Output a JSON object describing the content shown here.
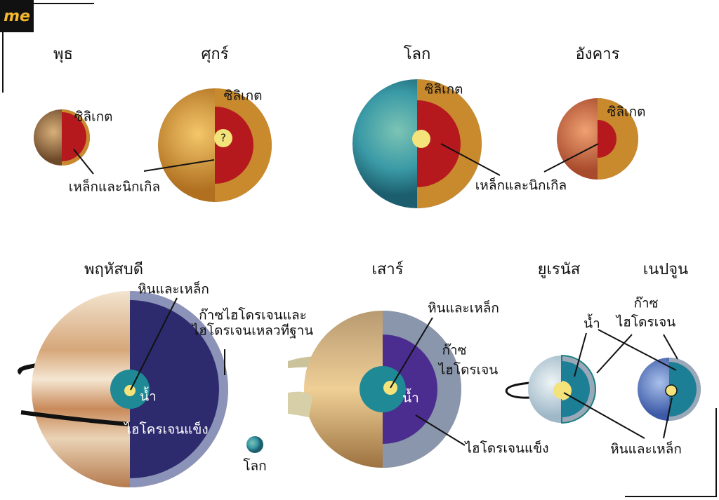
{
  "logo": "me",
  "planets": [
    {
      "name": "พุธ",
      "labels": [
        "ซิลิเกต",
        "เหล็กและนิกเกิล"
      ]
    },
    {
      "name": "ศุกร์",
      "labels": [
        "ซิลิเกต",
        "?"
      ]
    },
    {
      "name": "โลก",
      "labels": [
        "ซิลิเกต",
        "เหล็กและนิกเกิล"
      ]
    },
    {
      "name": "อังคาร",
      "labels": [
        "ซิลิเกต"
      ]
    },
    {
      "name": "พฤหัสบดี",
      "labels": [
        "หินและเหล็ก",
        "ก๊าซไฮโดรเจนและ",
        "ไฮโดรเจนเหลวทีฐาน",
        "น้ำ",
        "ไฮโครเจนแข็ง"
      ]
    },
    {
      "name": "เสาร์",
      "labels": [
        "หินและเหล็ก",
        "ก๊าซ",
        "ไฮโดรเจน",
        "น้ำ",
        "ไฮโดรเจนแข็ง"
      ]
    },
    {
      "name": "ยูเรนัส"
    },
    {
      "name": "เนปจูน"
    }
  ],
  "ice_giant_labels": [
    "ก๊าซ",
    "ไฮโดรเจน",
    "น้ำ",
    "หินและเหล็ก"
  ],
  "earth_scale_label": "โลก"
}
